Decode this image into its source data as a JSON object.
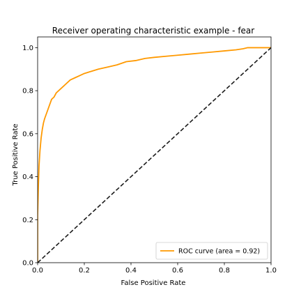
{
  "chart_data": {
    "type": "line",
    "title": "Receiver operating characteristic example - fear",
    "xlabel": "False Positive Rate",
    "ylabel": "True Positive Rate",
    "xlim": [
      0,
      1
    ],
    "ylim": [
      0,
      1.05
    ],
    "x_ticks": [
      0.0,
      0.2,
      0.4,
      0.6,
      0.8,
      1.0
    ],
    "y_ticks": [
      0.0,
      0.2,
      0.4,
      0.6,
      0.8,
      1.0
    ],
    "x_tick_labels": [
      "0.0",
      "0.2",
      "0.4",
      "0.6",
      "0.8",
      "1.0"
    ],
    "y_tick_labels": [
      "0.0",
      "0.2",
      "0.4",
      "0.6",
      "0.8",
      "1.0"
    ],
    "grid": false,
    "legend_position": "lower-right",
    "series": [
      {
        "name": "ROC curve (area = 0.92)",
        "color": "#ff9900",
        "style": "solid",
        "x": [
          0.0,
          0.0,
          0.003,
          0.006,
          0.01,
          0.015,
          0.02,
          0.025,
          0.03,
          0.04,
          0.05,
          0.06,
          0.07,
          0.08,
          0.1,
          0.12,
          0.14,
          0.16,
          0.18,
          0.2,
          0.23,
          0.26,
          0.3,
          0.34,
          0.38,
          0.42,
          0.46,
          0.5,
          0.55,
          0.6,
          0.65,
          0.7,
          0.75,
          0.8,
          0.85,
          0.88,
          0.9,
          0.93,
          0.96,
          1.0
        ],
        "y": [
          0.0,
          0.22,
          0.35,
          0.45,
          0.52,
          0.58,
          0.62,
          0.65,
          0.67,
          0.7,
          0.73,
          0.76,
          0.77,
          0.79,
          0.81,
          0.83,
          0.85,
          0.86,
          0.87,
          0.88,
          0.89,
          0.9,
          0.91,
          0.92,
          0.935,
          0.94,
          0.95,
          0.955,
          0.96,
          0.965,
          0.97,
          0.975,
          0.98,
          0.985,
          0.99,
          0.995,
          1.0,
          1.0,
          1.0,
          1.0
        ]
      },
      {
        "name": "",
        "color": "#1a1a1a",
        "style": "dashed",
        "x": [
          0,
          1
        ],
        "y": [
          0,
          1
        ]
      }
    ]
  }
}
